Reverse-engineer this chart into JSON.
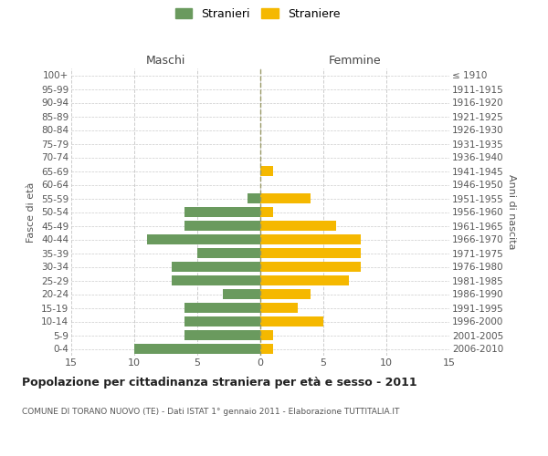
{
  "age_groups": [
    "0-4",
    "5-9",
    "10-14",
    "15-19",
    "20-24",
    "25-29",
    "30-34",
    "35-39",
    "40-44",
    "45-49",
    "50-54",
    "55-59",
    "60-64",
    "65-69",
    "70-74",
    "75-79",
    "80-84",
    "85-89",
    "90-94",
    "95-99",
    "100+"
  ],
  "birth_years": [
    "2006-2010",
    "2001-2005",
    "1996-2000",
    "1991-1995",
    "1986-1990",
    "1981-1985",
    "1976-1980",
    "1971-1975",
    "1966-1970",
    "1961-1965",
    "1956-1960",
    "1951-1955",
    "1946-1950",
    "1941-1945",
    "1936-1940",
    "1931-1935",
    "1926-1930",
    "1921-1925",
    "1916-1920",
    "1911-1915",
    "≤ 1910"
  ],
  "maschi": [
    10,
    6,
    6,
    6,
    3,
    7,
    7,
    5,
    9,
    6,
    6,
    1,
    0,
    0,
    0,
    0,
    0,
    0,
    0,
    0,
    0
  ],
  "femmine": [
    1,
    1,
    5,
    3,
    4,
    7,
    8,
    8,
    8,
    6,
    1,
    4,
    0,
    1,
    0,
    0,
    0,
    0,
    0,
    0,
    0
  ],
  "maschi_color": "#6a9a5e",
  "femmine_color": "#f5b800",
  "title": "Popolazione per cittadinanza straniera per età e sesso - 2011",
  "subtitle": "COMUNE DI TORANO NUOVO (TE) - Dati ISTAT 1° gennaio 2011 - Elaborazione TUTTITALIA.IT",
  "ylabel_left": "Fasce di età",
  "ylabel_right": "Anni di nascita",
  "xlabel_maschi": "Maschi",
  "xlabel_femmine": "Femmine",
  "legend_maschi": "Stranieri",
  "legend_femmine": "Straniere",
  "xlim": 15,
  "background_color": "#ffffff",
  "grid_color": "#cccccc",
  "bar_height": 0.75
}
